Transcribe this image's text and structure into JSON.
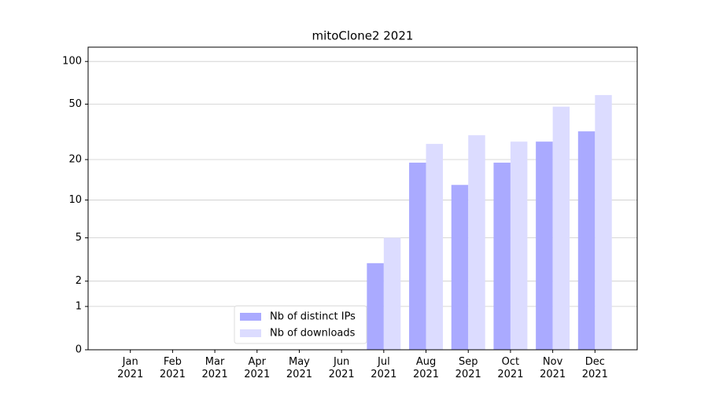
{
  "chart_data": {
    "type": "bar",
    "title": "mitoClone2 2021",
    "categories": [
      "Jan\n2021",
      "Feb\n2021",
      "Mar\n2021",
      "Apr\n2021",
      "May\n2021",
      "Jun\n2021",
      "Jul\n2021",
      "Aug\n2021",
      "Sep\n2021",
      "Oct\n2021",
      "Nov\n2021",
      "Dec\n2021"
    ],
    "series": [
      {
        "name": "Nb of distinct IPs",
        "color": "#aaaaff",
        "values": [
          0,
          0,
          0,
          0,
          0,
          0,
          3,
          19,
          13,
          19,
          27,
          32
        ]
      },
      {
        "name": "Nb of downloads",
        "color": "#dcdcff",
        "values": [
          0,
          0,
          0,
          0,
          0,
          0,
          5,
          26,
          30,
          27,
          48,
          58
        ]
      }
    ],
    "yscale": "log1p",
    "ylim": [
      0,
      126
    ],
    "yticks": [
      0,
      1,
      2,
      5,
      10,
      20,
      50,
      100
    ],
    "grid": true,
    "legend": "lower center"
  }
}
